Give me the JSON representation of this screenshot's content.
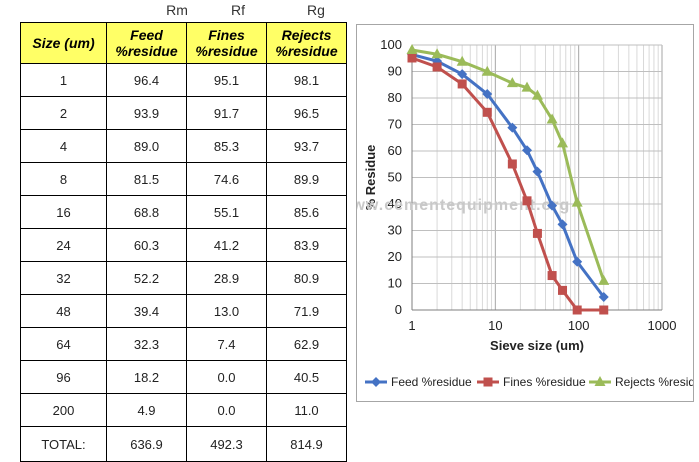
{
  "table": {
    "col_letters": [
      "Rm",
      "Rf",
      "Rg"
    ],
    "headers": [
      "Size (um)",
      "Feed %residue",
      "Fines %residue",
      "Rejects %residue"
    ],
    "rows": [
      [
        "1",
        "96.4",
        "95.1",
        "98.1"
      ],
      [
        "2",
        "93.9",
        "91.7",
        "96.5"
      ],
      [
        "4",
        "89.0",
        "85.3",
        "93.7"
      ],
      [
        "8",
        "81.5",
        "74.6",
        "89.9"
      ],
      [
        "16",
        "68.8",
        "55.1",
        "85.6"
      ],
      [
        "24",
        "60.3",
        "41.2",
        "83.9"
      ],
      [
        "32",
        "52.2",
        "28.9",
        "80.9"
      ],
      [
        "48",
        "39.4",
        "13.0",
        "71.9"
      ],
      [
        "64",
        "32.3",
        "7.4",
        "62.9"
      ],
      [
        "96",
        "18.2",
        "0.0",
        "40.5"
      ],
      [
        "200",
        "4.9",
        "0.0",
        "11.0"
      ]
    ],
    "total": [
      "TOTAL:",
      "636.9",
      "492.3",
      "814.9"
    ]
  },
  "watermark": "www.cementequipment.org",
  "chart_data": {
    "type": "line",
    "x_scale": "log",
    "xlabel": "Sieve size (um)",
    "ylabel": "% Residue",
    "xlim": [
      1,
      1000
    ],
    "ylim": [
      0,
      100
    ],
    "x_ticks": [
      "1",
      "10",
      "100",
      "1000"
    ],
    "y_ticks": [
      "0",
      "10",
      "20",
      "30",
      "40",
      "50",
      "60",
      "70",
      "80",
      "90",
      "100"
    ],
    "grid": true,
    "legend_position": "bottom",
    "x": [
      1,
      2,
      4,
      8,
      16,
      24,
      32,
      48,
      64,
      96,
      200
    ],
    "series": [
      {
        "name": "Feed %residue",
        "color": "#4472c4",
        "marker": "diamond",
        "values": [
          96.4,
          93.9,
          89.0,
          81.5,
          68.8,
          60.3,
          52.2,
          39.4,
          32.3,
          18.2,
          4.9
        ]
      },
      {
        "name": "Fines %residue",
        "color": "#c0504d",
        "marker": "square",
        "values": [
          95.1,
          91.7,
          85.3,
          74.6,
          55.1,
          41.2,
          28.9,
          13.0,
          7.4,
          0.0,
          0.0
        ]
      },
      {
        "name": "Rejects %residue",
        "color": "#9bbb59",
        "marker": "triangle",
        "values": [
          98.1,
          96.5,
          93.7,
          89.9,
          85.6,
          83.9,
          80.9,
          71.9,
          62.9,
          40.5,
          11.0
        ]
      }
    ]
  }
}
